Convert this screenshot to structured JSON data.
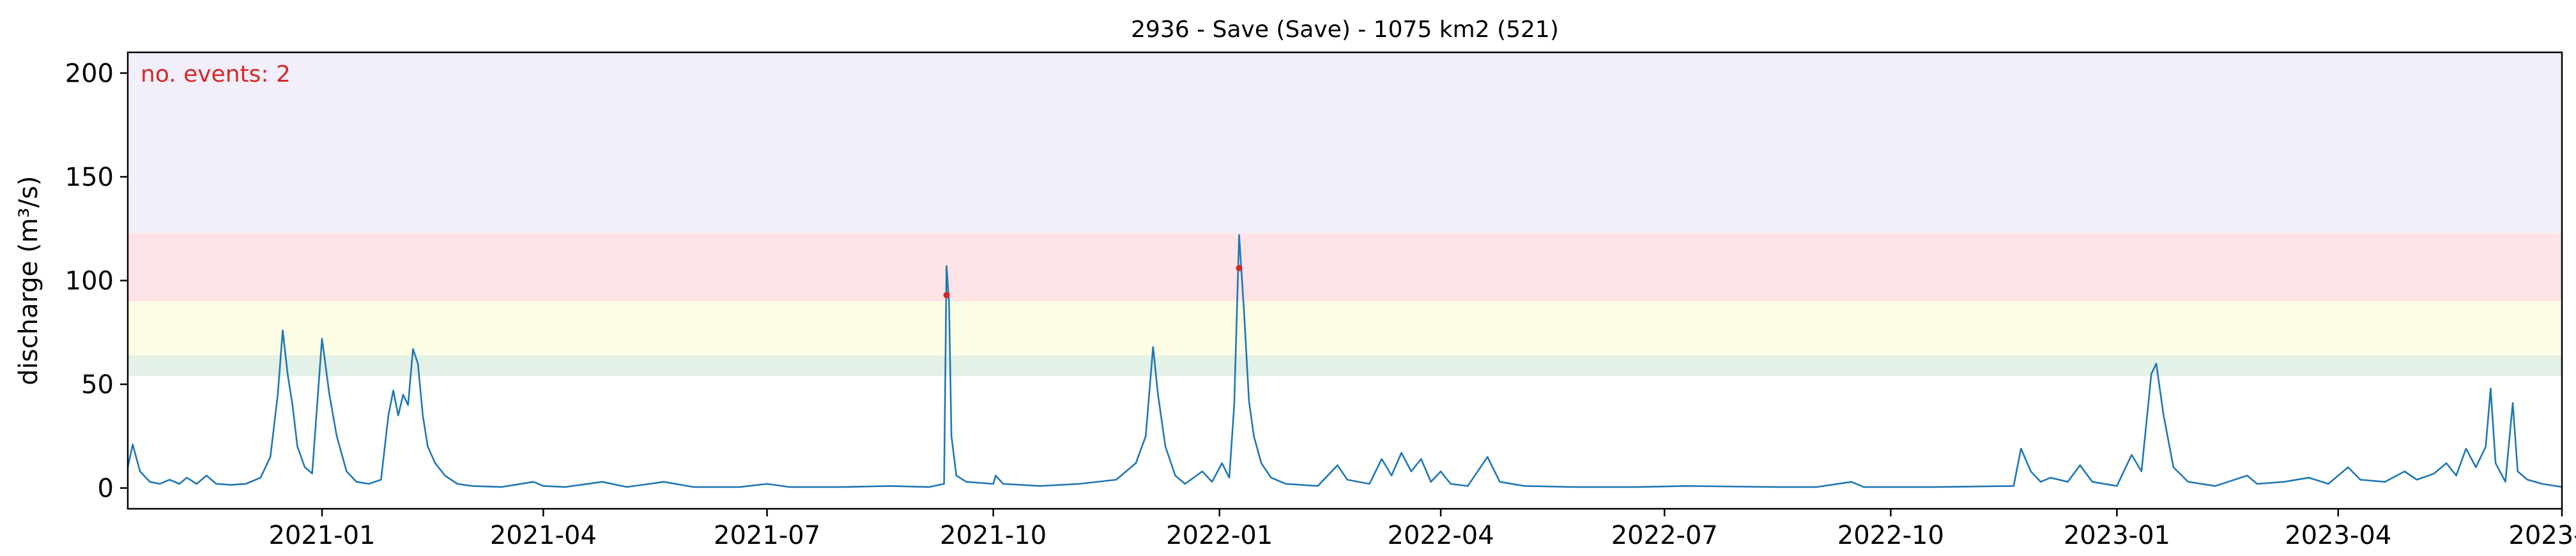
{
  "chart_data": {
    "type": "line",
    "title": "2936 - Save (Save) - 1075 km2 (521)",
    "xlabel": "",
    "ylabel": "discharge (m³/s)",
    "xlim": [
      "2020-10-14",
      "2023-07-01"
    ],
    "ylim": [
      -10,
      210
    ],
    "x_ticks": [
      {
        "date": "2021-01-01",
        "label": "2021-01"
      },
      {
        "date": "2021-04-01",
        "label": "2021-04"
      },
      {
        "date": "2021-07-01",
        "label": "2021-07"
      },
      {
        "date": "2021-10-01",
        "label": "2021-10"
      },
      {
        "date": "2022-01-01",
        "label": "2022-01"
      },
      {
        "date": "2022-04-01",
        "label": "2022-04"
      },
      {
        "date": "2022-07-01",
        "label": "2022-07"
      },
      {
        "date": "2022-10-01",
        "label": "2022-10"
      },
      {
        "date": "2023-01-01",
        "label": "2023-01"
      },
      {
        "date": "2023-04-01",
        "label": "2023-04"
      },
      {
        "date": "2023-07-01",
        "label": "2023-07"
      }
    ],
    "y_ticks": [
      0,
      50,
      100,
      150,
      200
    ],
    "grid": false,
    "bands": [
      {
        "from": 54,
        "to": 64,
        "color": "#e4f1e6"
      },
      {
        "from": 64,
        "to": 90,
        "color": "#fdfde6"
      },
      {
        "from": 90,
        "to": 123,
        "color": "#fee4e6"
      },
      {
        "from": 123,
        "to": 210,
        "color": "#f2effa"
      }
    ],
    "series": [
      {
        "color": "#1f77b4",
        "points": [
          [
            "2020-10-14",
            10
          ],
          [
            "2020-10-16",
            21
          ],
          [
            "2020-10-19",
            8
          ],
          [
            "2020-10-23",
            3
          ],
          [
            "2020-10-27",
            2
          ],
          [
            "2020-10-31",
            4
          ],
          [
            "2020-11-04",
            2
          ],
          [
            "2020-11-07",
            5
          ],
          [
            "2020-11-11",
            2
          ],
          [
            "2020-11-15",
            6
          ],
          [
            "2020-11-19",
            2
          ],
          [
            "2020-11-25",
            1.5
          ],
          [
            "2020-12-01",
            2
          ],
          [
            "2020-12-07",
            5
          ],
          [
            "2020-12-11",
            15
          ],
          [
            "2020-12-14",
            45
          ],
          [
            "2020-12-16",
            76
          ],
          [
            "2020-12-18",
            55
          ],
          [
            "2020-12-20",
            40
          ],
          [
            "2020-12-22",
            20
          ],
          [
            "2020-12-25",
            10
          ],
          [
            "2020-12-28",
            7
          ],
          [
            "2021-01-01",
            72
          ],
          [
            "2021-01-04",
            45
          ],
          [
            "2021-01-07",
            25
          ],
          [
            "2021-01-11",
            8
          ],
          [
            "2021-01-15",
            3
          ],
          [
            "2021-01-20",
            2
          ],
          [
            "2021-01-25",
            4
          ],
          [
            "2021-01-28",
            35
          ],
          [
            "2021-01-30",
            47
          ],
          [
            "2021-02-01",
            35
          ],
          [
            "2021-02-03",
            45
          ],
          [
            "2021-02-05",
            40
          ],
          [
            "2021-02-07",
            67
          ],
          [
            "2021-02-09",
            60
          ],
          [
            "2021-02-11",
            35
          ],
          [
            "2021-02-13",
            20
          ],
          [
            "2021-02-16",
            12
          ],
          [
            "2021-02-20",
            6
          ],
          [
            "2021-02-25",
            2
          ],
          [
            "2021-03-03",
            1
          ],
          [
            "2021-03-15",
            0.5
          ],
          [
            "2021-03-28",
            3
          ],
          [
            "2021-04-01",
            1
          ],
          [
            "2021-04-10",
            0.5
          ],
          [
            "2021-04-25",
            3
          ],
          [
            "2021-05-05",
            0.5
          ],
          [
            "2021-05-20",
            3
          ],
          [
            "2021-06-01",
            0.5
          ],
          [
            "2021-06-20",
            0.5
          ],
          [
            "2021-07-01",
            2
          ],
          [
            "2021-07-10",
            0.5
          ],
          [
            "2021-08-01",
            0.5
          ],
          [
            "2021-08-20",
            1
          ],
          [
            "2021-09-05",
            0.5
          ],
          [
            "2021-09-11",
            2
          ],
          [
            "2021-09-12",
            107
          ],
          [
            "2021-09-13",
            90
          ],
          [
            "2021-09-14",
            25
          ],
          [
            "2021-09-16",
            6
          ],
          [
            "2021-09-20",
            3
          ],
          [
            "2021-10-01",
            2
          ],
          [
            "2021-10-02",
            6
          ],
          [
            "2021-10-05",
            2
          ],
          [
            "2021-10-20",
            1
          ],
          [
            "2021-11-05",
            2
          ],
          [
            "2021-11-20",
            4
          ],
          [
            "2021-11-28",
            12
          ],
          [
            "2021-12-02",
            25
          ],
          [
            "2021-12-05",
            68
          ],
          [
            "2021-12-07",
            45
          ],
          [
            "2021-12-10",
            20
          ],
          [
            "2021-12-14",
            6
          ],
          [
            "2021-12-18",
            2
          ],
          [
            "2021-12-25",
            8
          ],
          [
            "2021-12-29",
            3
          ],
          [
            "2022-01-02",
            12
          ],
          [
            "2022-01-05",
            5
          ],
          [
            "2022-01-07",
            40
          ],
          [
            "2022-01-09",
            122
          ],
          [
            "2022-01-11",
            85
          ],
          [
            "2022-01-13",
            42
          ],
          [
            "2022-01-15",
            25
          ],
          [
            "2022-01-18",
            12
          ],
          [
            "2022-01-22",
            5
          ],
          [
            "2022-01-28",
            2
          ],
          [
            "2022-02-10",
            1
          ],
          [
            "2022-02-18",
            11
          ],
          [
            "2022-02-22",
            4
          ],
          [
            "2022-03-03",
            2
          ],
          [
            "2022-03-08",
            14
          ],
          [
            "2022-03-12",
            6
          ],
          [
            "2022-03-16",
            17
          ],
          [
            "2022-03-20",
            8
          ],
          [
            "2022-03-24",
            14
          ],
          [
            "2022-03-28",
            3
          ],
          [
            "2022-04-01",
            8
          ],
          [
            "2022-04-05",
            2
          ],
          [
            "2022-04-12",
            1
          ],
          [
            "2022-04-20",
            15
          ],
          [
            "2022-04-25",
            3
          ],
          [
            "2022-05-05",
            1
          ],
          [
            "2022-05-25",
            0.5
          ],
          [
            "2022-06-20",
            0.5
          ],
          [
            "2022-07-10",
            1
          ],
          [
            "2022-08-15",
            0.5
          ],
          [
            "2022-09-01",
            0.5
          ],
          [
            "2022-09-15",
            3
          ],
          [
            "2022-09-20",
            0.5
          ],
          [
            "2022-10-20",
            0.5
          ],
          [
            "2022-11-20",
            1
          ],
          [
            "2022-11-23",
            19
          ],
          [
            "2022-11-27",
            8
          ],
          [
            "2022-12-01",
            3
          ],
          [
            "2022-12-05",
            5
          ],
          [
            "2022-12-12",
            3
          ],
          [
            "2022-12-17",
            11
          ],
          [
            "2022-12-22",
            3
          ],
          [
            "2023-01-01",
            1
          ],
          [
            "2023-01-07",
            16
          ],
          [
            "2023-01-11",
            8
          ],
          [
            "2023-01-15",
            55
          ],
          [
            "2023-01-17",
            60
          ],
          [
            "2023-01-20",
            35
          ],
          [
            "2023-01-24",
            10
          ],
          [
            "2023-01-30",
            3
          ],
          [
            "2023-02-10",
            1
          ],
          [
            "2023-02-23",
            6
          ],
          [
            "2023-02-27",
            2
          ],
          [
            "2023-03-10",
            3
          ],
          [
            "2023-03-20",
            5
          ],
          [
            "2023-03-28",
            2
          ],
          [
            "2023-04-05",
            10
          ],
          [
            "2023-04-10",
            4
          ],
          [
            "2023-04-20",
            3
          ],
          [
            "2023-04-28",
            8
          ],
          [
            "2023-05-03",
            4
          ],
          [
            "2023-05-10",
            7
          ],
          [
            "2023-05-15",
            12
          ],
          [
            "2023-05-19",
            6
          ],
          [
            "2023-05-23",
            19
          ],
          [
            "2023-05-27",
            10
          ],
          [
            "2023-05-31",
            20
          ],
          [
            "2023-06-02",
            48
          ],
          [
            "2023-06-04",
            12
          ],
          [
            "2023-06-08",
            3
          ],
          [
            "2023-06-11",
            41
          ],
          [
            "2023-06-13",
            8
          ],
          [
            "2023-06-17",
            4
          ],
          [
            "2023-06-23",
            2
          ],
          [
            "2023-07-01",
            0.5
          ]
        ]
      }
    ],
    "events": [
      {
        "date": "2021-09-12",
        "value": 93,
        "color": "#d62728"
      },
      {
        "date": "2022-01-09",
        "value": 106,
        "color": "#d62728"
      }
    ],
    "annotation": {
      "text": "no. events: 2",
      "color": "#d62728",
      "position": "top-left"
    }
  }
}
